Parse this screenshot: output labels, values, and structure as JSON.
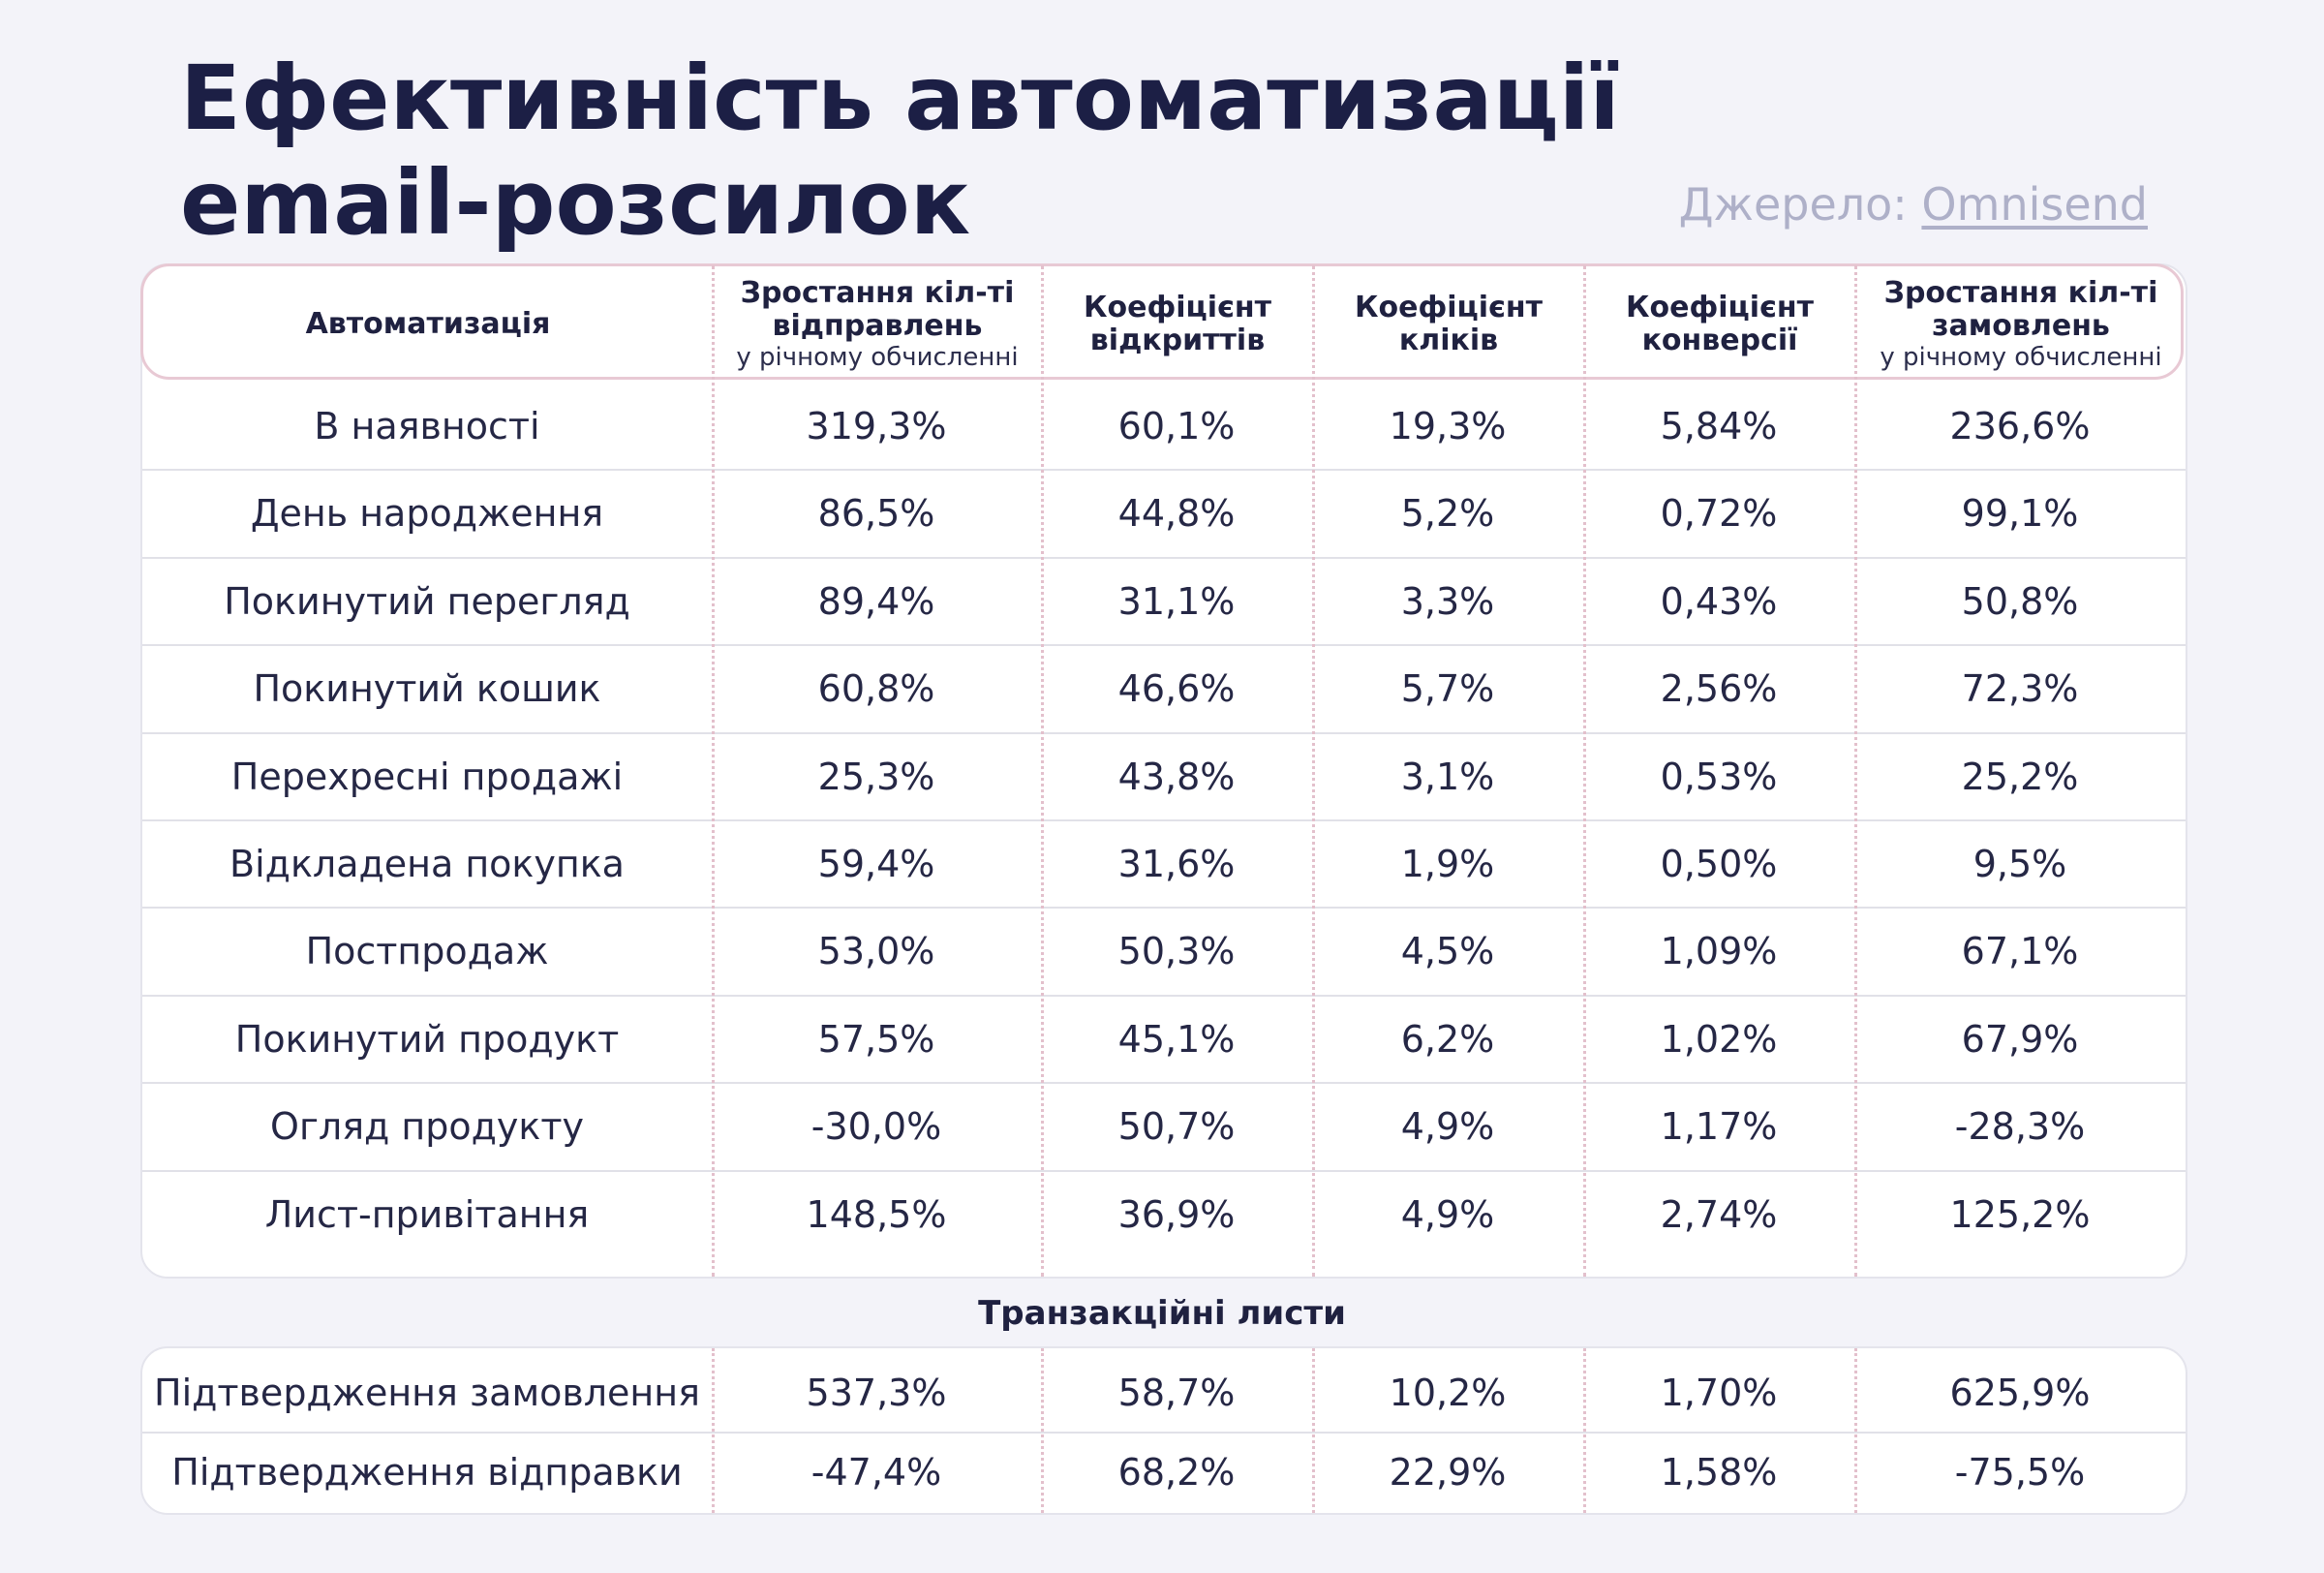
{
  "title_line1": "Ефективність автоматизації",
  "title_line2": "email-розсилок",
  "source_prefix": "Джерело: ",
  "source_link": "Omnisend",
  "headers": [
    {
      "main": "Автоматизація",
      "sub": ""
    },
    {
      "main": "Зростання кіл-ті відправлень",
      "sub": "у річному обчисленні"
    },
    {
      "main": "Коефіцієнт відкриттів",
      "sub": ""
    },
    {
      "main": "Коефіцієнт кліків",
      "sub": ""
    },
    {
      "main": "Коефіцієнт конверсії",
      "sub": ""
    },
    {
      "main": "Зростання кіл-ті замовлень",
      "sub": "у річному обчисленні"
    }
  ],
  "rows": [
    [
      "В наявності",
      "319,3%",
      "60,1%",
      "19,3%",
      "5,84%",
      "236,6%"
    ],
    [
      "День народження",
      "86,5%",
      "44,8%",
      "5,2%",
      "0,72%",
      "99,1%"
    ],
    [
      "Покинутий перегляд",
      "89,4%",
      "31,1%",
      "3,3%",
      "0,43%",
      "50,8%"
    ],
    [
      "Покинутий кошик",
      "60,8%",
      "46,6%",
      "5,7%",
      "2,56%",
      "72,3%"
    ],
    [
      "Перехресні продажі",
      "25,3%",
      "43,8%",
      "3,1%",
      "0,53%",
      "25,2%"
    ],
    [
      "Відкладена покупка",
      "59,4%",
      "31,6%",
      "1,9%",
      "0,50%",
      "9,5%"
    ],
    [
      "Постпродаж",
      "53,0%",
      "50,3%",
      "4,5%",
      "1,09%",
      "67,1%"
    ],
    [
      "Покинутий продукт",
      "57,5%",
      "45,1%",
      "6,2%",
      "1,02%",
      "67,9%"
    ],
    [
      "Огляд продукту",
      "-30,0%",
      "50,7%",
      "4,9%",
      "1,17%",
      "-28,3%"
    ],
    [
      "Лист-привітання",
      "148,5%",
      "36,9%",
      "4,9%",
      "2,74%",
      "125,2%"
    ]
  ],
  "transactional_title": "Транзакційні листи",
  "transactional_rows": [
    [
      "Підтвердження замовлення",
      "537,3%",
      "58,7%",
      "10,2%",
      "1,70%",
      "625,9%"
    ],
    [
      "Підтвердження відправки",
      "-47,4%",
      "68,2%",
      "22,9%",
      "1,58%",
      "-75,5%"
    ]
  ]
}
